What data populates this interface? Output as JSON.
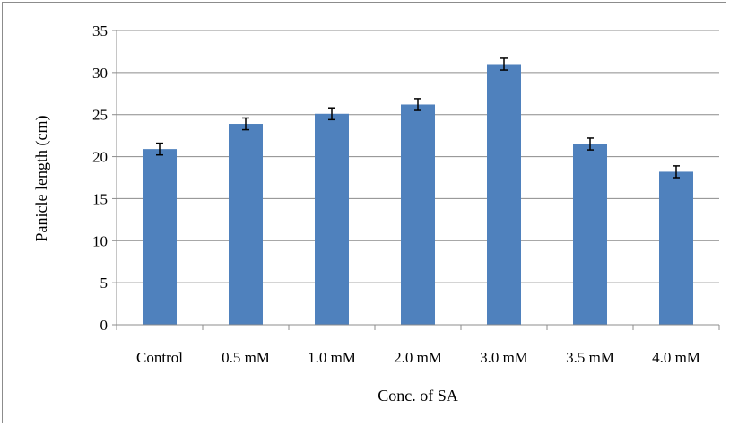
{
  "chart_data": {
    "type": "bar",
    "title": "",
    "xlabel": "Conc. of SA",
    "ylabel": "Panicle length (cm)",
    "ylim": [
      0,
      35
    ],
    "yticks": [
      0,
      5,
      10,
      15,
      20,
      25,
      30,
      35
    ],
    "grid": true,
    "legend": "none",
    "categories": [
      "Control",
      "0.5 mM",
      "1.0 mM",
      "2.0 mM",
      "3.0 mM",
      "3.5 mM",
      "4.0 mM"
    ],
    "series": [
      {
        "values": [
          20.9,
          23.9,
          25.1,
          26.2,
          31.0,
          21.5,
          18.2
        ],
        "errors": [
          0.7,
          0.7,
          0.7,
          0.7,
          0.7,
          0.7,
          0.7
        ],
        "color": "#4f81bd"
      }
    ]
  },
  "colors": {
    "bar": "#4f81bd",
    "grid": "#8c8c8c",
    "axis": "#8c8c8c",
    "error_bar": "#000000"
  }
}
